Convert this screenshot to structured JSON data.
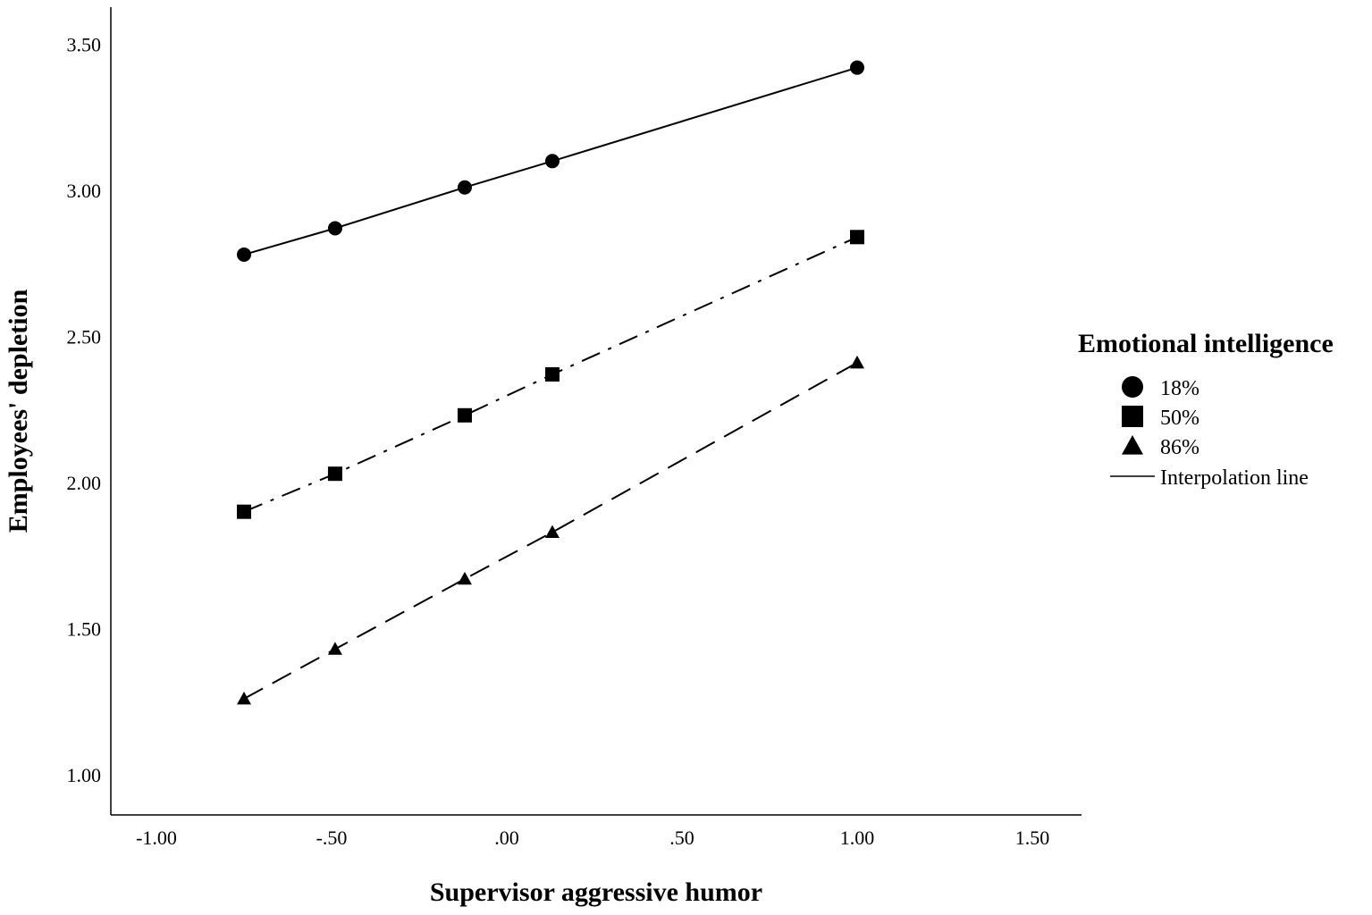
{
  "chart_data": {
    "type": "line",
    "xlabel": "Supervisor aggressive humor",
    "ylabel": "Employees' depletion",
    "xlim": [
      -1.0,
      1.5
    ],
    "ylim": [
      0.9,
      3.6
    ],
    "xticks": [
      -1.0,
      -0.5,
      0.0,
      0.5,
      1.0,
      1.5
    ],
    "xtick_labels": [
      "-1.00",
      "-.50",
      ".00",
      ".50",
      "1.00",
      "1.50"
    ],
    "yticks": [
      1.0,
      1.5,
      2.0,
      2.5,
      3.0,
      3.5
    ],
    "ytick_labels": [
      "1.00",
      "1.50",
      "2.00",
      "2.50",
      "3.00",
      "3.50"
    ],
    "grid": false,
    "legend": {
      "title": "Emotional intelligence",
      "placement": "right",
      "line_label": "Interpolation line"
    },
    "x": [
      -0.75,
      -0.49,
      -0.12,
      0.13,
      1.0
    ],
    "series": [
      {
        "name": "18%",
        "marker": "circle",
        "dash": "solid",
        "values": [
          2.78,
          2.87,
          3.01,
          3.1,
          3.42
        ]
      },
      {
        "name": "50%",
        "marker": "square",
        "dash": "dashdot",
        "values": [
          1.9,
          2.03,
          2.23,
          2.37,
          2.84
        ]
      },
      {
        "name": "86%",
        "marker": "triangle",
        "dash": "dashed",
        "values": [
          1.26,
          1.43,
          1.67,
          1.83,
          2.41
        ]
      }
    ]
  }
}
